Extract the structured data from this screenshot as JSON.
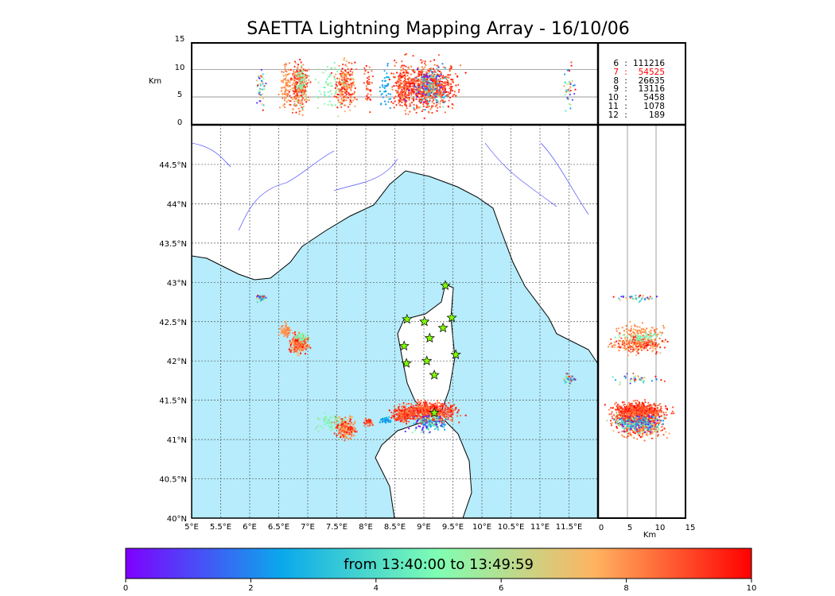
{
  "title": "SAETTA Lightning Mapping Array - 16/10/06",
  "top_panel": {
    "ylabel": "Km",
    "yticks": [
      "0",
      "5",
      "10",
      "15"
    ]
  },
  "right_panel": {
    "xlabel": "Km",
    "xticks": [
      "0",
      "5",
      "10",
      "15"
    ]
  },
  "map": {
    "lon_ticks": [
      "5°E",
      "5.5°E",
      "6°E",
      "6.5°E",
      "7°E",
      "7.5°E",
      "8°E",
      "8.5°E",
      "9°E",
      "9.5°E",
      "10°E",
      "10.5°E",
      "11°E",
      "11.5°E"
    ],
    "lat_ticks": [
      "40°N",
      "40.5°N",
      "41°N",
      "41.5°N",
      "42°N",
      "42.5°N",
      "43°N",
      "43.5°N",
      "44°N",
      "44.5°N"
    ],
    "sea_color": "#b6ecfb",
    "star_color": "#7fff00"
  },
  "station_count_legend": [
    {
      "label": "6",
      "count": "111216",
      "highlight": false
    },
    {
      "label": "7",
      "count": "54525",
      "highlight": true
    },
    {
      "label": "8",
      "count": "26635",
      "highlight": false
    },
    {
      "label": "9",
      "count": "13116",
      "highlight": false
    },
    {
      "label": "10",
      "count": "5458",
      "highlight": false
    },
    {
      "label": "11",
      "count": "1078",
      "highlight": false
    },
    {
      "label": "12",
      "count": "189",
      "highlight": false
    }
  ],
  "colorbar": {
    "label": "from 13:40:00 to 13:49:59",
    "ticks": [
      "0",
      "2",
      "4",
      "6",
      "8",
      "10"
    ],
    "range": [
      0,
      10
    ]
  },
  "chart_data": {
    "type": "scatter",
    "title": "SAETTA Lightning Mapping Array - 16/10/06",
    "xlim": [
      5,
      12
    ],
    "ylim": [
      40,
      45
    ],
    "alt_lim": [
      0,
      15
    ],
    "stations": [
      [
        9.37,
        42.96
      ],
      [
        8.71,
        42.53
      ],
      [
        9.01,
        42.5
      ],
      [
        9.48,
        42.55
      ],
      [
        8.66,
        42.19
      ],
      [
        9.1,
        42.29
      ],
      [
        9.33,
        42.42
      ],
      [
        8.7,
        41.97
      ],
      [
        9.05,
        42.0
      ],
      [
        9.55,
        42.08
      ],
      [
        9.18,
        41.82
      ],
      [
        9.18,
        41.34
      ]
    ],
    "clusters": [
      {
        "lon": 6.85,
        "lat": 42.22,
        "slon": 0.07,
        "slat": 0.05,
        "n": 300,
        "t": [
          7,
          10
        ]
      },
      {
        "lon": 6.62,
        "lat": 42.38,
        "slon": 0.05,
        "slat": 0.04,
        "n": 80,
        "t": [
          7.5,
          8.5
        ]
      },
      {
        "lon": 6.9,
        "lat": 42.3,
        "slon": 0.05,
        "slat": 0.03,
        "n": 50,
        "t": [
          4.5,
          5.5
        ]
      },
      {
        "lon": 6.2,
        "lat": 42.8,
        "slon": 0.04,
        "slat": 0.02,
        "n": 40,
        "t": [
          0,
          10
        ]
      },
      {
        "lon": 7.65,
        "lat": 41.15,
        "slon": 0.09,
        "slat": 0.06,
        "n": 250,
        "t": [
          7,
          10
        ]
      },
      {
        "lon": 7.4,
        "lat": 41.2,
        "slon": 0.12,
        "slat": 0.06,
        "n": 60,
        "t": [
          4.5,
          6
        ]
      },
      {
        "lon": 8.05,
        "lat": 41.22,
        "slon": 0.04,
        "slat": 0.02,
        "n": 40,
        "t": [
          8,
          10
        ]
      },
      {
        "lon": 8.35,
        "lat": 41.25,
        "slon": 0.05,
        "slat": 0.02,
        "n": 40,
        "t": [
          2,
          3
        ]
      },
      {
        "lon": 8.65,
        "lat": 41.32,
        "slon": 0.1,
        "slat": 0.04,
        "n": 200,
        "t": [
          8,
          10
        ]
      },
      {
        "lon": 9.1,
        "lat": 41.35,
        "slon": 0.22,
        "slat": 0.06,
        "n": 700,
        "t": [
          8,
          10
        ]
      },
      {
        "lon": 9.1,
        "lat": 41.2,
        "slon": 0.15,
        "slat": 0.05,
        "n": 150,
        "t": [
          0,
          6
        ]
      },
      {
        "lon": 11.5,
        "lat": 41.77,
        "slon": 0.05,
        "slat": 0.03,
        "n": 40,
        "t": [
          0,
          10
        ]
      }
    ]
  }
}
